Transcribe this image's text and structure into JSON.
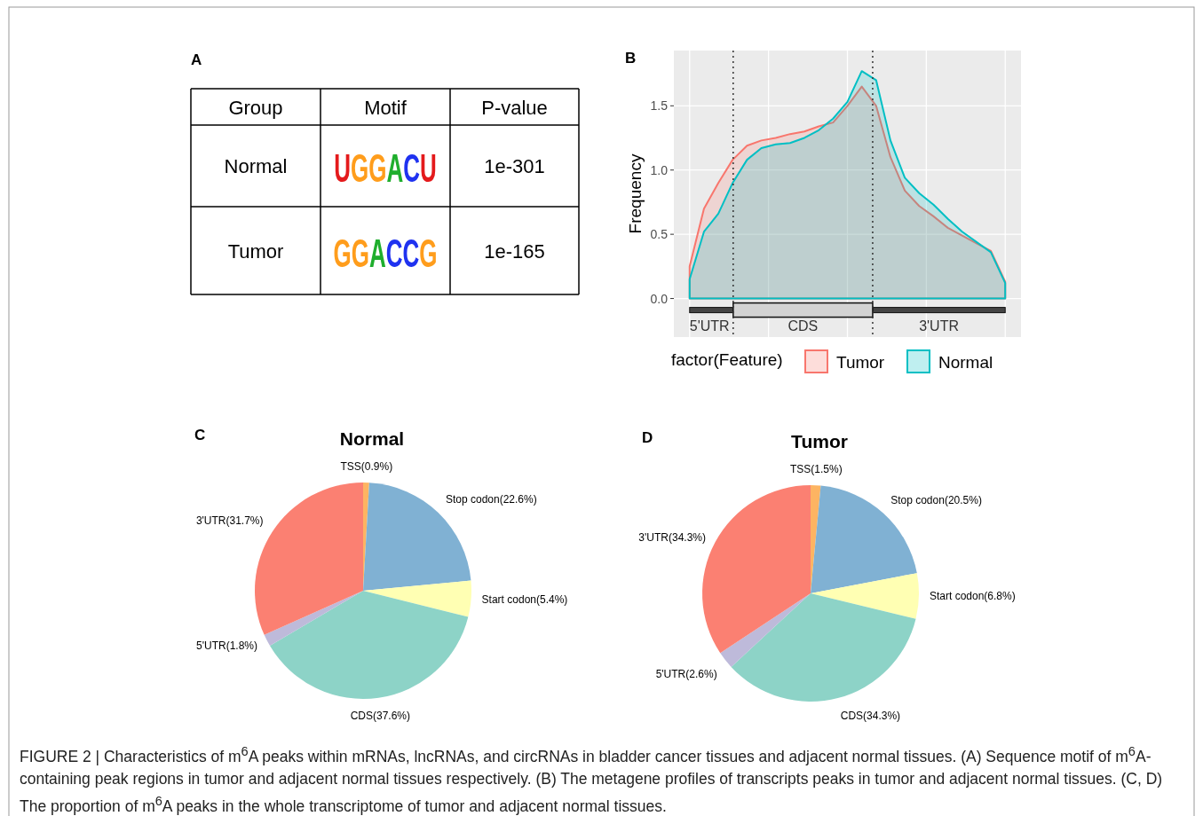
{
  "chart_data": [
    {
      "type": "other",
      "annotations": [
        "A",
        "Group",
        "Motif",
        "P-value",
        "Normal",
        "UGGACU",
        "1e-301",
        "Tumor",
        "GGACCG",
        "1e-165"
      ]
    },
    {
      "type": "area",
      "ylabel": "Frequency",
      "legend_title": "factor(Feature)",
      "legend": "bottom",
      "grid": true,
      "tick_labels": "y",
      "categories": [
        null,
        null,
        null,
        null,
        null,
        null,
        null,
        null,
        null,
        null,
        null,
        null,
        null,
        null,
        null,
        null,
        null,
        null,
        null,
        null,
        null,
        null,
        null
      ],
      "ylim": [
        -0.3,
        1.93
      ],
      "yticks": [
        {
          "value": 0,
          "label": "0.0"
        },
        0.5,
        {
          "value": 1,
          "label": "1.0"
        },
        1.5
      ],
      "annotations": [
        "B",
        "5'UTR",
        "CDS",
        "3'UTR"
      ],
      "series": [
        {
          "name": "Tumor",
          "color": "#f8766d",
          "values": [
            0.25,
            0.7,
            0.9,
            1.08,
            1.19,
            1.23,
            1.25,
            1.28,
            1.3,
            1.34,
            1.37,
            1.5,
            1.65,
            1.5,
            1.1,
            0.84,
            0.72,
            0.64,
            0.55,
            0.49,
            0.43,
            0.37,
            0.13
          ]
        },
        {
          "name": "Normal",
          "color": "#00bfc4",
          "values": [
            0.15,
            0.52,
            0.66,
            0.9,
            1.08,
            1.17,
            1.2,
            1.21,
            1.25,
            1.31,
            1.4,
            1.53,
            1.77,
            1.7,
            1.23,
            0.94,
            0.82,
            0.73,
            0.62,
            0.52,
            0.44,
            0.36,
            0.12
          ]
        }
      ]
    },
    {
      "type": "pie",
      "title": "Normal",
      "annotations": [
        "C"
      ],
      "categories": [
        "TSS(0.9%)",
        "Stop codon(22.6%)",
        "Start codon(5.4%)",
        "CDS(37.6%)",
        "5'UTR(1.8%)",
        "3'UTR(31.7%)"
      ],
      "values": [
        0.9,
        22.6,
        5.4,
        37.6,
        1.8,
        31.7
      ],
      "colors": [
        "#fdb462",
        "#80b1d3",
        "#ffffb3",
        "#8dd3c7",
        "#bebada",
        "#fb8072"
      ]
    },
    {
      "type": "pie",
      "title": "Tumor",
      "annotations": [
        "D",
        "FIGURE 2 | Characteristics of m$^{6}$A peaks within mRNAs, lncRNAs, and circRNAs in bladder cancer tissues and adjacent normal tissues. (A) Sequence motif of m$^{6}$A-containing peak regions in tumor and adjacent normal tissues respectively. (B) The metagene profiles of transcripts peaks in tumor and adjacent normal tissues. (C, D) The proportion of m$^{6}$A peaks in the whole transcriptome of tumor and adjacent normal tissues."
      ],
      "categories": [
        "TSS(1.5%)",
        "Stop codon(20.5%)",
        "Start codon(6.8%)",
        "CDS(34.3%)",
        "5'UTR(2.6%)",
        "3'UTR(34.3%)"
      ],
      "values": [
        1.5,
        20.5,
        6.8,
        34.3,
        2.6,
        34.3
      ],
      "colors": [
        "#fdb462",
        "#80b1d3",
        "#ffffb3",
        "#8dd3c7",
        "#bebada",
        "#fb8072"
      ]
    }
  ]
}
